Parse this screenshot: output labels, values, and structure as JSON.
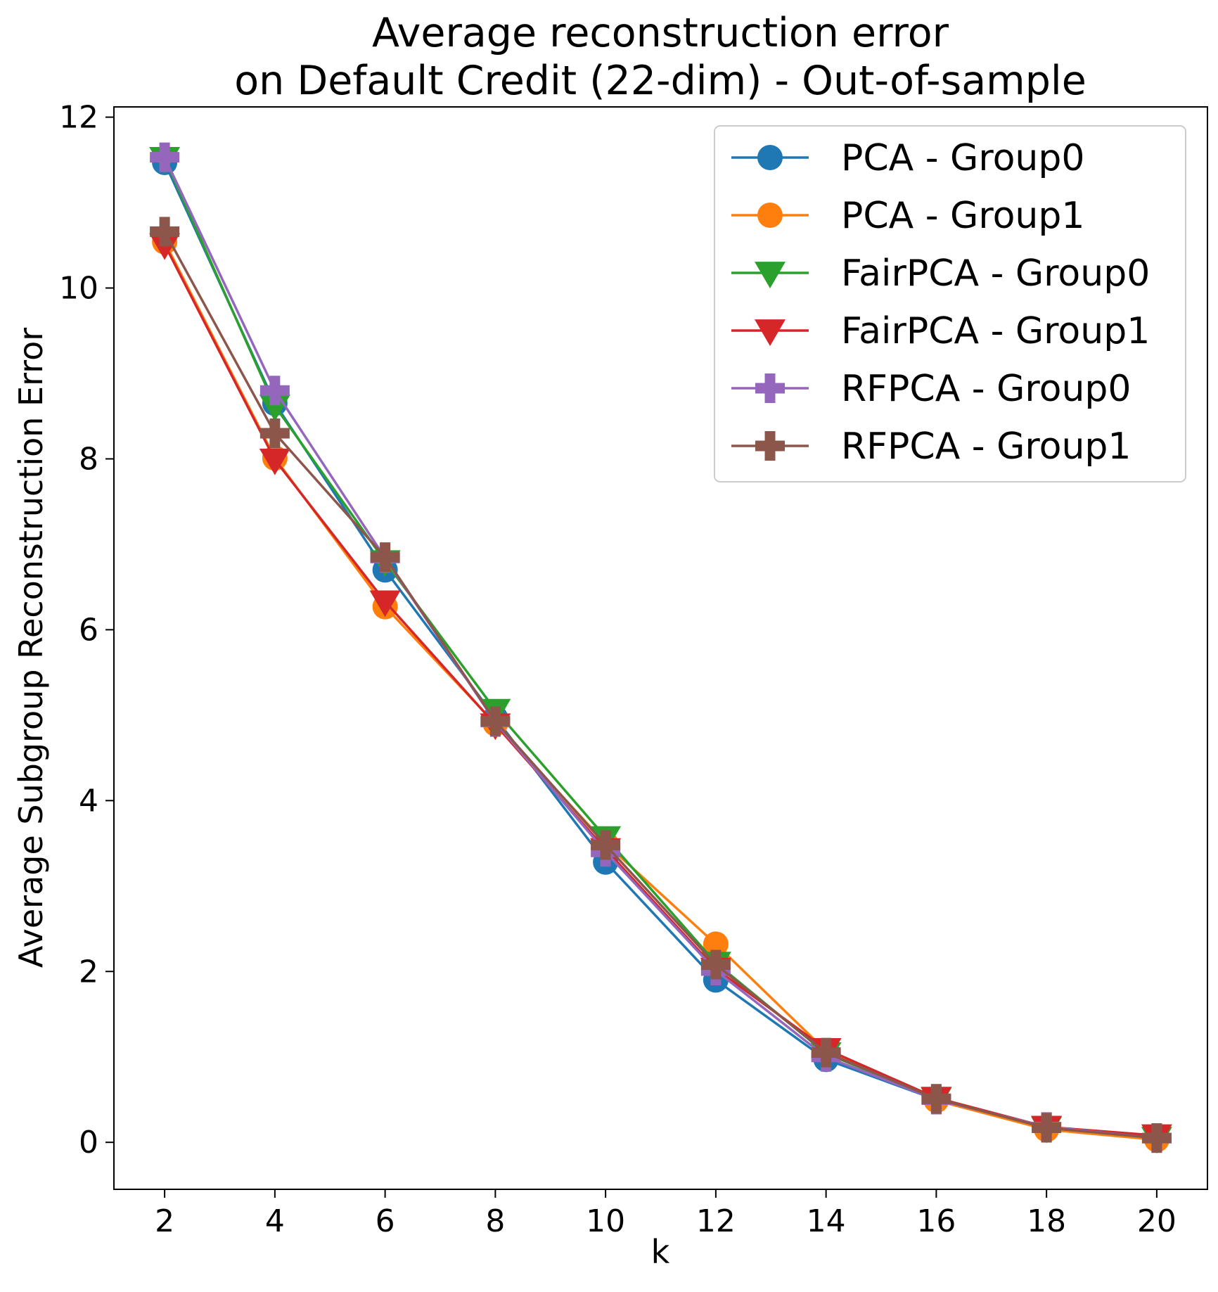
{
  "chart_data": {
    "type": "line",
    "title": [
      "Average reconstruction error",
      "on Default Credit (22-dim) - Out-of-sample"
    ],
    "xlabel": "k",
    "ylabel": "Average Subgroup Reconstruction Error",
    "x": [
      2,
      4,
      6,
      8,
      10,
      12,
      14,
      16,
      18,
      20
    ],
    "xticks": [
      "2",
      "4",
      "6",
      "8",
      "10",
      "12",
      "14",
      "16",
      "18",
      "20"
    ],
    "yticks": [
      "0",
      "2",
      "4",
      "6",
      "8",
      "10",
      "12"
    ],
    "xlim": [
      1.08,
      20.92
    ],
    "ylim": [
      -0.55,
      12.12
    ],
    "grid": false,
    "legend_position": "top-right",
    "series": [
      {
        "name": "PCA - Group0",
        "color": "#1f77b4",
        "marker": "circle",
        "values": [
          11.47,
          8.65,
          6.7,
          4.97,
          3.28,
          1.9,
          0.97,
          0.5,
          0.17,
          0.04
        ]
      },
      {
        "name": "PCA - Group1",
        "color": "#ff7f0e",
        "marker": "circle",
        "values": [
          10.54,
          8.01,
          6.27,
          4.9,
          3.5,
          2.32,
          1.07,
          0.49,
          0.15,
          0.03
        ]
      },
      {
        "name": "FairPCA - Group0",
        "color": "#2ca02c",
        "marker": "triangle-down",
        "values": [
          11.52,
          8.62,
          6.8,
          5.06,
          3.57,
          2.1,
          1.04,
          0.51,
          0.17,
          0.05
        ]
      },
      {
        "name": "FairPCA - Group1",
        "color": "#d62728",
        "marker": "triangle-down",
        "values": [
          10.51,
          7.99,
          6.33,
          4.89,
          3.43,
          2.03,
          1.09,
          0.52,
          0.18,
          0.08
        ]
      },
      {
        "name": "RFPCA - Group0",
        "color": "#9467bd",
        "marker": "plus",
        "values": [
          11.53,
          8.8,
          6.84,
          4.92,
          3.4,
          2.01,
          1.0,
          0.5,
          0.18,
          0.05
        ]
      },
      {
        "name": "RFPCA - Group1",
        "color": "#8c564b",
        "marker": "plus",
        "values": [
          10.66,
          8.3,
          6.85,
          4.93,
          3.48,
          2.08,
          1.05,
          0.51,
          0.17,
          0.05
        ]
      }
    ]
  }
}
